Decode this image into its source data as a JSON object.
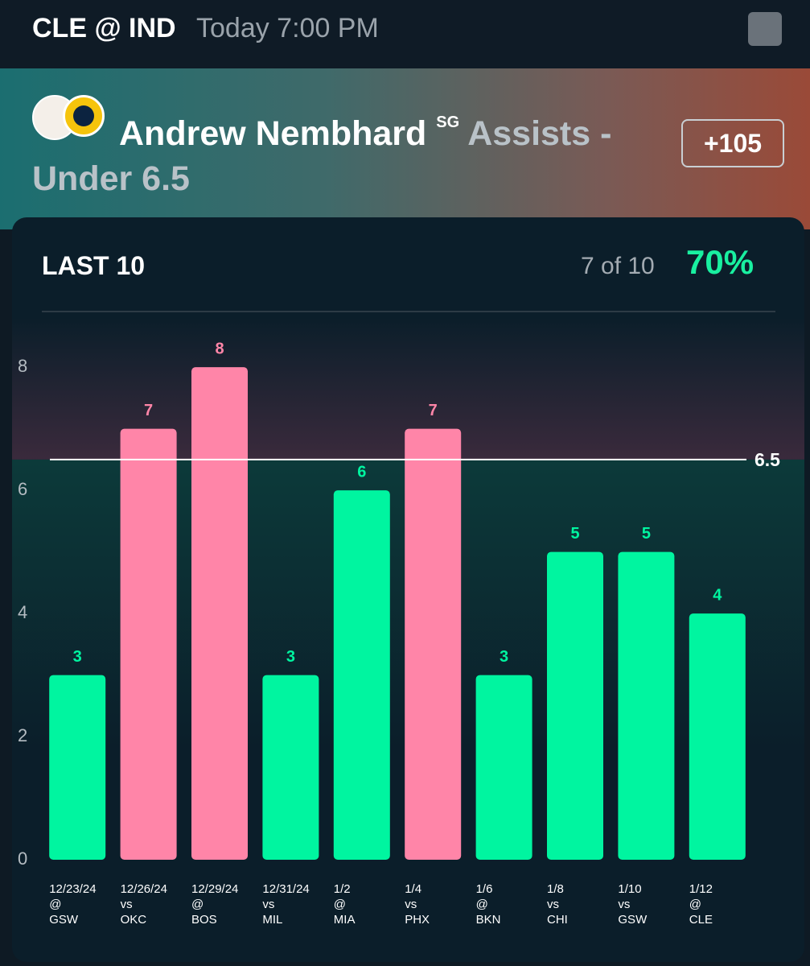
{
  "header": {
    "matchup": "CLE @ IND",
    "time": "Today 7:00 PM"
  },
  "player": {
    "name": "Andrew Nembhard",
    "position": "SG",
    "market": "Assists - Under 6.5",
    "odds": "+105"
  },
  "card": {
    "title": "LAST 10",
    "record": "7 of 10",
    "percent": "70%"
  },
  "chart_data": {
    "type": "bar",
    "categories": [
      "12/23/24",
      "12/26/24",
      "12/29/24",
      "12/31/24",
      "1/2",
      "1/4",
      "1/6",
      "1/8",
      "1/10",
      "1/12"
    ],
    "sites": [
      "@",
      "vs",
      "@",
      "vs",
      "@",
      "vs",
      "@",
      "vs",
      "vs",
      "@"
    ],
    "opponents": [
      "GSW",
      "OKC",
      "BOS",
      "MIL",
      "MIA",
      "PHX",
      "BKN",
      "CHI",
      "GSW",
      "CLE"
    ],
    "values": [
      3,
      7,
      8,
      3,
      6,
      7,
      3,
      5,
      5,
      4
    ],
    "line": 6.5,
    "color_over": "#ff85a8",
    "color_under": "#00f5a0",
    "ylim": [
      0,
      8.8
    ],
    "yticks": [
      0,
      2,
      4,
      6,
      8
    ]
  }
}
